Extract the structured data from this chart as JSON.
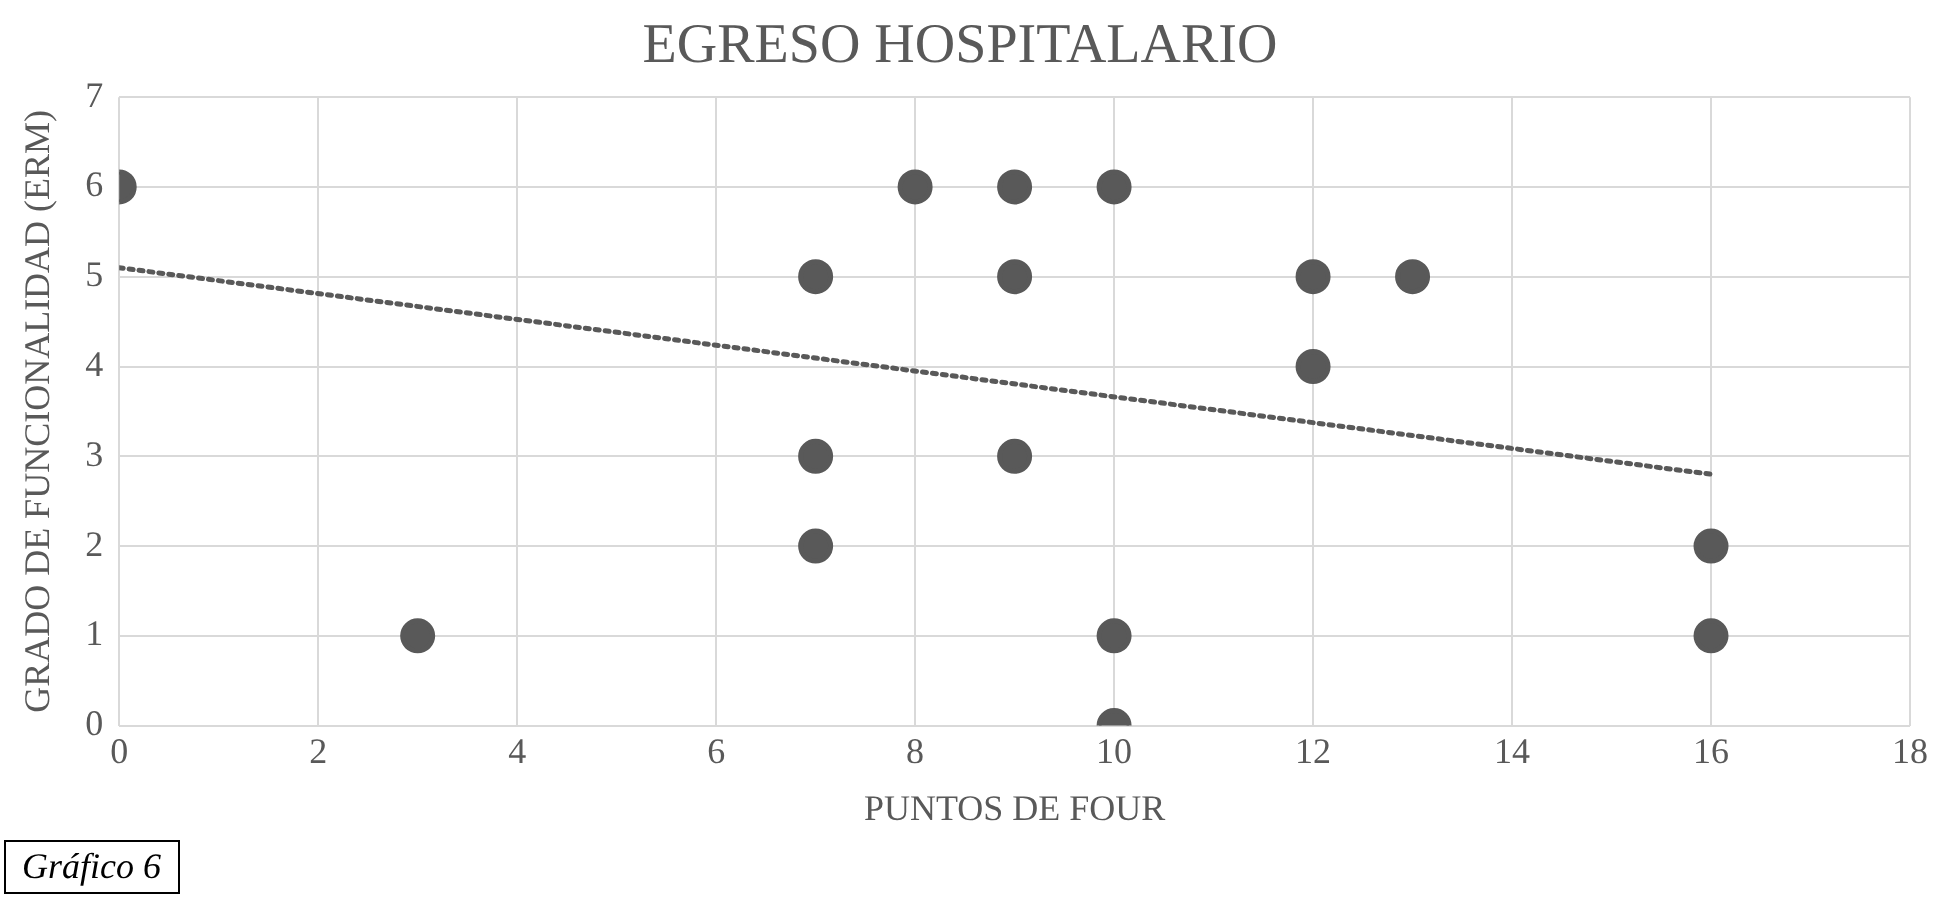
{
  "chart_data": {
    "type": "scatter",
    "title": "EGRESO HOSPITALARIO",
    "xlabel": "PUNTOS DE FOUR",
    "ylabel": "GRADO DE FUNCIONALIDAD (ERM)",
    "annotations": [
      "Gráfico 6"
    ],
    "series": [
      {
        "color": "#595959",
        "marker": "circle",
        "x": [
          0,
          3,
          7,
          7,
          7,
          8,
          9,
          9,
          9,
          10,
          10,
          10,
          12,
          12,
          13,
          16,
          16
        ],
        "values": [
          6,
          1,
          5,
          3,
          2,
          6,
          6,
          5,
          3,
          6,
          1,
          0,
          5,
          4,
          5,
          2,
          1
        ]
      },
      {
        "type": "line",
        "color": "#595959",
        "marker": "none",
        "line_style": "dotted",
        "x": [
          0,
          16
        ],
        "values": [
          5.1,
          2.8
        ]
      }
    ],
    "xlim": [
      0,
      18
    ],
    "xticks": [
      0,
      2,
      4,
      6,
      8,
      10,
      12,
      14,
      16,
      18
    ],
    "ylim": [
      0,
      7
    ],
    "yticks": [
      0,
      1,
      2,
      3,
      4,
      5,
      6,
      7
    ],
    "grid": true,
    "legend": false
  }
}
